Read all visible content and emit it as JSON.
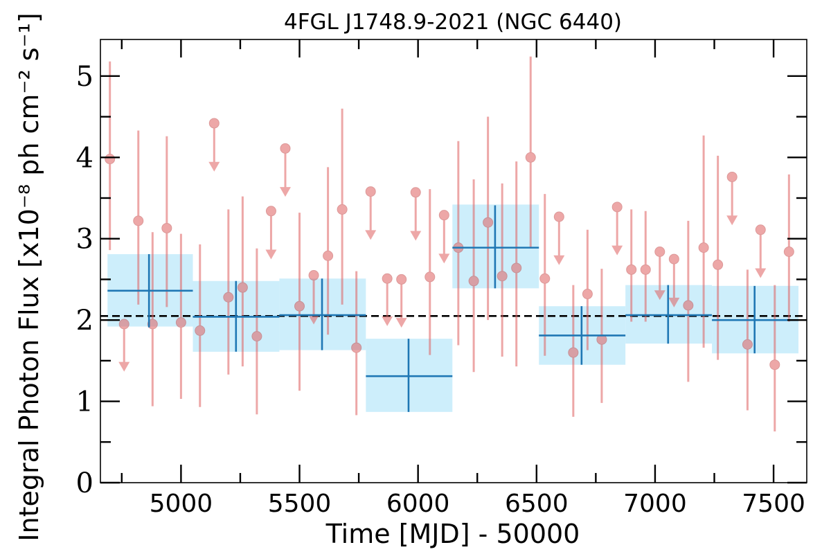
{
  "chart_data": {
    "type": "scatter",
    "title": "4FGL J1748.9-2021 (NGC 6440)",
    "xlabel": "Time [MJD] - 50000",
    "ylabel": "Integral Photon Flux [x10⁻⁸ ph cm⁻² s⁻¹]",
    "xlim": [
      4660,
      7640
    ],
    "ylim": [
      0,
      5.45
    ],
    "x_ticks": [
      "5000",
      "5500",
      "6000",
      "6500",
      "7000",
      "7500"
    ],
    "y_ticks": [
      "0",
      "1",
      "2",
      "3",
      "4",
      "5"
    ],
    "average_flux": 2.05,
    "colors": {
      "points": "#e06060",
      "bins_fill": "#cdeefb",
      "bins_line": "#1f77b4",
      "average": "#000000"
    },
    "binned": [
      {
        "x": 4865,
        "x_lo": 4690,
        "x_hi": 5050,
        "y": 2.36,
        "y_lo": 1.91,
        "y_hi": 2.81,
        "box_lo": 1.92,
        "box_hi": 2.81
      },
      {
        "x": 5232,
        "x_lo": 5050,
        "x_hi": 5415,
        "y": 2.04,
        "y_lo": 1.61,
        "y_hi": 2.48,
        "box_lo": 1.61,
        "box_hi": 2.48
      },
      {
        "x": 5595,
        "x_lo": 5415,
        "x_hi": 5780,
        "y": 2.06,
        "y_lo": 1.63,
        "y_hi": 2.51,
        "box_lo": 1.63,
        "box_hi": 2.51
      },
      {
        "x": 5960,
        "x_lo": 5780,
        "x_hi": 6145,
        "y": 1.31,
        "y_lo": 0.87,
        "y_hi": 1.77,
        "box_lo": 0.87,
        "box_hi": 1.77
      },
      {
        "x": 6325,
        "x_lo": 6145,
        "x_hi": 6510,
        "y": 2.89,
        "y_lo": 2.39,
        "y_hi": 3.41,
        "box_lo": 2.39,
        "box_hi": 3.42
      },
      {
        "x": 6690,
        "x_lo": 6510,
        "x_hi": 6875,
        "y": 1.81,
        "y_lo": 1.45,
        "y_hi": 2.17,
        "box_lo": 1.45,
        "box_hi": 2.17
      },
      {
        "x": 7055,
        "x_lo": 6875,
        "x_hi": 7240,
        "y": 2.06,
        "y_lo": 1.71,
        "y_hi": 2.43,
        "box_lo": 1.71,
        "box_hi": 2.43
      },
      {
        "x": 7420,
        "x_lo": 7240,
        "x_hi": 7605,
        "y": 2.0,
        "y_lo": 1.59,
        "y_hi": 2.42,
        "box_lo": 1.59,
        "box_hi": 2.42
      }
    ],
    "points": [
      {
        "x": 4700,
        "y": 3.98,
        "y_lo": 2.86,
        "y_hi": 5.18
      },
      {
        "x": 4760,
        "y": 1.95,
        "upper_limit": true,
        "arrow_to": 1.4
      },
      {
        "x": 4820,
        "y": 3.22,
        "y_lo": 2.19,
        "y_hi": 4.33
      },
      {
        "x": 4880,
        "y": 1.95,
        "y_lo": 0.94,
        "y_hi": 3.08
      },
      {
        "x": 4940,
        "y": 3.13,
        "y_lo": 2.16,
        "y_hi": 4.26
      },
      {
        "x": 5000,
        "y": 1.97,
        "y_lo": 1.03,
        "y_hi": 3.06
      },
      {
        "x": 5080,
        "y": 1.87,
        "y_lo": 0.93,
        "y_hi": 2.93
      },
      {
        "x": 5140,
        "y": 4.42,
        "upper_limit": true,
        "arrow_to": 3.86
      },
      {
        "x": 5200,
        "y": 2.28,
        "y_lo": 1.33,
        "y_hi": 3.36
      },
      {
        "x": 5260,
        "y": 2.4,
        "y_lo": 1.43,
        "y_hi": 3.52
      },
      {
        "x": 5320,
        "y": 1.8,
        "y_lo": 0.84,
        "y_hi": 2.88
      },
      {
        "x": 5380,
        "y": 3.34,
        "upper_limit": true,
        "arrow_to": 2.78
      },
      {
        "x": 5440,
        "y": 4.11,
        "upper_limit": true,
        "arrow_to": 3.55
      },
      {
        "x": 5500,
        "y": 2.17,
        "y_lo": 1.13,
        "y_hi": 3.32
      },
      {
        "x": 5560,
        "y": 2.55,
        "upper_limit": true,
        "arrow_to": 1.98
      },
      {
        "x": 5620,
        "y": 2.79,
        "y_lo": 1.82,
        "y_hi": 3.88
      },
      {
        "x": 5680,
        "y": 3.36,
        "y_lo": 2.19,
        "y_hi": 4.6
      },
      {
        "x": 5740,
        "y": 1.66,
        "y_lo": 0.83,
        "y_hi": 2.6
      },
      {
        "x": 5800,
        "y": 3.58,
        "upper_limit": true,
        "arrow_to": 3.02
      },
      {
        "x": 5870,
        "y": 2.51,
        "upper_limit": true,
        "arrow_to": 1.96
      },
      {
        "x": 5930,
        "y": 2.5,
        "upper_limit": true,
        "arrow_to": 1.94
      },
      {
        "x": 5990,
        "y": 3.57,
        "upper_limit": true,
        "arrow_to": 3.01
      },
      {
        "x": 6050,
        "y": 2.53,
        "y_lo": 1.57,
        "y_hi": 3.61
      },
      {
        "x": 6110,
        "y": 3.29,
        "upper_limit": true,
        "arrow_to": 2.73
      },
      {
        "x": 6170,
        "y": 2.89,
        "y_lo": 1.69,
        "y_hi": 4.2
      },
      {
        "x": 6235,
        "y": 2.48,
        "y_lo": 1.36,
        "y_hi": 3.73
      },
      {
        "x": 6295,
        "y": 3.2,
        "y_lo": 2.0,
        "y_hi": 4.5
      },
      {
        "x": 6355,
        "y": 2.54,
        "y_lo": 1.55,
        "y_hi": 3.68
      },
      {
        "x": 6415,
        "y": 2.64,
        "y_lo": 1.43,
        "y_hi": 3.95
      },
      {
        "x": 6475,
        "y": 4.0,
        "y_lo": 2.89,
        "y_hi": 5.24
      },
      {
        "x": 6535,
        "y": 2.51,
        "y_lo": 1.56,
        "y_hi": 3.55
      },
      {
        "x": 6595,
        "y": 3.27,
        "upper_limit": true,
        "arrow_to": 2.71
      },
      {
        "x": 6655,
        "y": 1.6,
        "y_lo": 0.81,
        "y_hi": 2.43
      },
      {
        "x": 6715,
        "y": 2.32,
        "y_lo": 1.63,
        "y_hi": 3.11
      },
      {
        "x": 6775,
        "y": 1.76,
        "y_lo": 0.98,
        "y_hi": 2.63
      },
      {
        "x": 6840,
        "y": 3.39,
        "upper_limit": true,
        "arrow_to": 2.83
      },
      {
        "x": 6900,
        "y": 2.62,
        "y_lo": 1.98,
        "y_hi": 3.36
      },
      {
        "x": 6960,
        "y": 2.62,
        "y_lo": 1.98,
        "y_hi": 3.34
      },
      {
        "x": 7020,
        "y": 2.84,
        "upper_limit": true,
        "arrow_to": 2.28
      },
      {
        "x": 7080,
        "y": 2.75,
        "upper_limit": true,
        "arrow_to": 2.19
      },
      {
        "x": 7140,
        "y": 2.18,
        "y_lo": 1.24,
        "y_hi": 3.22
      },
      {
        "x": 7205,
        "y": 2.89,
        "y_lo": 1.66,
        "y_hi": 4.27
      },
      {
        "x": 7265,
        "y": 2.68,
        "y_lo": 1.51,
        "y_hi": 4.02
      },
      {
        "x": 7325,
        "y": 3.76,
        "upper_limit": true,
        "arrow_to": 3.2
      },
      {
        "x": 7390,
        "y": 1.7,
        "y_lo": 0.89,
        "y_hi": 2.62
      },
      {
        "x": 7445,
        "y": 3.11,
        "upper_limit": true,
        "arrow_to": 2.55
      },
      {
        "x": 7505,
        "y": 1.45,
        "y_lo": 0.63,
        "y_hi": 2.43
      },
      {
        "x": 7565,
        "y": 2.84,
        "y_lo": 1.98,
        "y_hi": 3.79
      }
    ]
  }
}
